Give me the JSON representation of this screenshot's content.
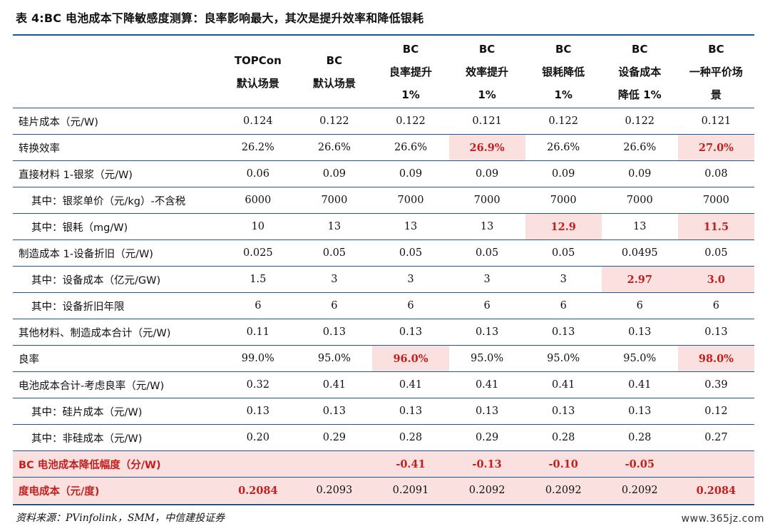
{
  "title": "表 4:BC 电池成本下降敏感度测算：良率影响最大，其次是提升效率和降低银耗",
  "columns": [
    [
      "TOPCon",
      "默认场景"
    ],
    [
      "BC",
      "默认场景"
    ],
    [
      "BC",
      "良率提升",
      "1%"
    ],
    [
      "BC",
      "效率提升",
      "1%"
    ],
    [
      "BC",
      "银耗降低",
      "1%"
    ],
    [
      "BC",
      "设备成本",
      "降低 1%"
    ],
    [
      "BC",
      "一种平价场",
      "景"
    ]
  ],
  "rows": [
    {
      "label": "硅片成本（元/W)",
      "sub": false,
      "values": [
        "0.124",
        "0.122",
        "0.122",
        "0.121",
        "0.122",
        "0.122",
        "0.121"
      ],
      "hl": []
    },
    {
      "label": "转换效率",
      "sub": false,
      "values": [
        "26.2%",
        "26.6%",
        "26.6%",
        "26.9%",
        "26.6%",
        "26.6%",
        "27.0%"
      ],
      "hl": [
        3,
        6
      ]
    },
    {
      "label": "直接材料 1-银浆（元/W)",
      "sub": false,
      "values": [
        "0.06",
        "0.09",
        "0.09",
        "0.09",
        "0.09",
        "0.09",
        "0.08"
      ],
      "hl": []
    },
    {
      "label": "其中：银浆单价（元/kg）-不含税",
      "sub": true,
      "values": [
        "6000",
        "7000",
        "7000",
        "7000",
        "7000",
        "7000",
        "7000"
      ],
      "hl": []
    },
    {
      "label": "其中：银耗（mg/W)",
      "sub": true,
      "values": [
        "10",
        "13",
        "13",
        "13",
        "12.9",
        "13",
        "11.5"
      ],
      "hl": [
        4,
        6
      ]
    },
    {
      "label": "制造成本 1-设备折旧（元/W)",
      "sub": false,
      "values": [
        "0.025",
        "0.05",
        "0.05",
        "0.05",
        "0.05",
        "0.0495",
        "0.05"
      ],
      "hl": []
    },
    {
      "label": "其中：设备成本（亿元/GW)",
      "sub": true,
      "values": [
        "1.5",
        "3",
        "3",
        "3",
        "3",
        "2.97",
        "3.0"
      ],
      "hl": [
        5,
        6
      ]
    },
    {
      "label": "其中：设备折旧年限",
      "sub": true,
      "values": [
        "6",
        "6",
        "6",
        "6",
        "6",
        "6",
        "6"
      ],
      "hl": []
    },
    {
      "label": "其他材料、制造成本合计（元/W)",
      "sub": false,
      "values": [
        "0.11",
        "0.13",
        "0.13",
        "0.13",
        "0.13",
        "0.13",
        "0.13"
      ],
      "hl": []
    },
    {
      "label": "良率",
      "sub": false,
      "values": [
        "99.0%",
        "95.0%",
        "96.0%",
        "95.0%",
        "95.0%",
        "95.0%",
        "98.0%"
      ],
      "hl": [
        2,
        6
      ]
    },
    {
      "label": "电池成本合计-考虑良率（元/W)",
      "sub": false,
      "values": [
        "0.32",
        "0.41",
        "0.41",
        "0.41",
        "0.41",
        "0.41",
        "0.39"
      ],
      "hl": []
    },
    {
      "label": "其中：硅片成本（元/W)",
      "sub": true,
      "values": [
        "0.13",
        "0.13",
        "0.13",
        "0.13",
        "0.13",
        "0.13",
        "0.12"
      ],
      "hl": []
    },
    {
      "label": "其中：非硅成本（元/W)",
      "sub": true,
      "values": [
        "0.20",
        "0.29",
        "0.28",
        "0.29",
        "0.28",
        "0.28",
        "0.27"
      ],
      "hl": []
    }
  ],
  "reduction_row": {
    "label": "BC 电池成本降低幅度（分/W)",
    "values": [
      "",
      "",
      "-0.41",
      "-0.13",
      "-0.10",
      "-0.05",
      ""
    ]
  },
  "lcoe_row": {
    "label": "度电成本（元/度)",
    "values": [
      "0.2084",
      "0.2093",
      "0.2091",
      "0.2092",
      "0.2092",
      "0.2092",
      "0.2084"
    ],
    "hl": [
      0,
      6
    ]
  },
  "source": "资料来源：PVinfolink，SMM，中信建投证券",
  "watermark": "www.365jz.com",
  "colors": {
    "rule": "#1f5597",
    "highlight_bg": "#fbe0e0",
    "highlight_text": "#c0201e"
  }
}
